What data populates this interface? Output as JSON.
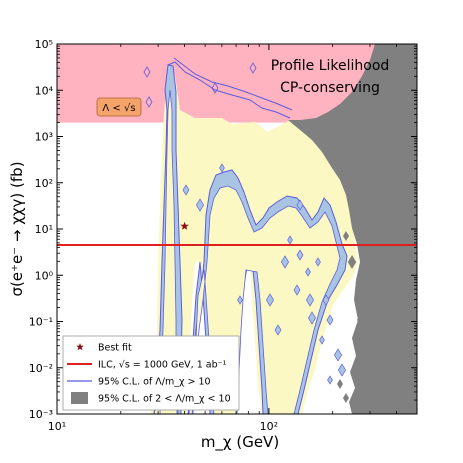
{
  "chart_data": {
    "type": "contour",
    "xlabel": "m_χ (GeV)",
    "ylabel": "σ(e⁺e⁻ → χχγ) (fb)",
    "xscale": "log",
    "yscale": "log",
    "xlim": [
      10,
      500
    ],
    "ylim": [
      0.001,
      100000
    ],
    "x_ticks": [
      {
        "value": 10,
        "label": "10¹"
      },
      {
        "value": 100,
        "label": "10²"
      }
    ],
    "y_ticks": [
      {
        "value": 0.001,
        "label": "10⁻³"
      },
      {
        "value": 0.01,
        "label": "10⁻²"
      },
      {
        "value": 0.1,
        "label": "10⁻¹"
      },
      {
        "value": 1,
        "label": "10⁰"
      },
      {
        "value": 10,
        "label": "10¹"
      },
      {
        "value": 100,
        "label": "10²"
      },
      {
        "value": 1000,
        "label": "10³"
      },
      {
        "value": 10000,
        "label": "10⁴"
      },
      {
        "value": 100000,
        "label": "10⁵"
      }
    ],
    "annotations": {
      "title_line1": "Profile Likelihood",
      "title_line2": "CP-conserving",
      "excluded_label": "Λ < √s"
    },
    "excluded_band_ymin": 2000,
    "ilc_sensitivity_fb": 4.5,
    "best_fit": {
      "x": 40,
      "y": 11.5
    },
    "legend": {
      "placement": "bottom-left",
      "entries": [
        {
          "key": "best_fit",
          "label": "Best fit"
        },
        {
          "key": "ilc",
          "label": "ILC, √s = 1000 GeV, 1 ab⁻¹"
        },
        {
          "key": "cl_high",
          "label": "95% C.L. of Λ/m_χ > 10"
        },
        {
          "key": "cl_low",
          "label": "95% C.L. of 2 < Λ/m_χ < 10"
        }
      ]
    },
    "colors": {
      "excluded_band": "#ffb3c1",
      "yellow_region": "#fbf8c4",
      "blue_region": "#a9c4e3",
      "contour_line": "#5b5bdd",
      "gray_region": "#808080",
      "ilc_line": "#e02020",
      "best_fit_star": "#8b1010",
      "excluded_box": "#f4a46a"
    }
  }
}
